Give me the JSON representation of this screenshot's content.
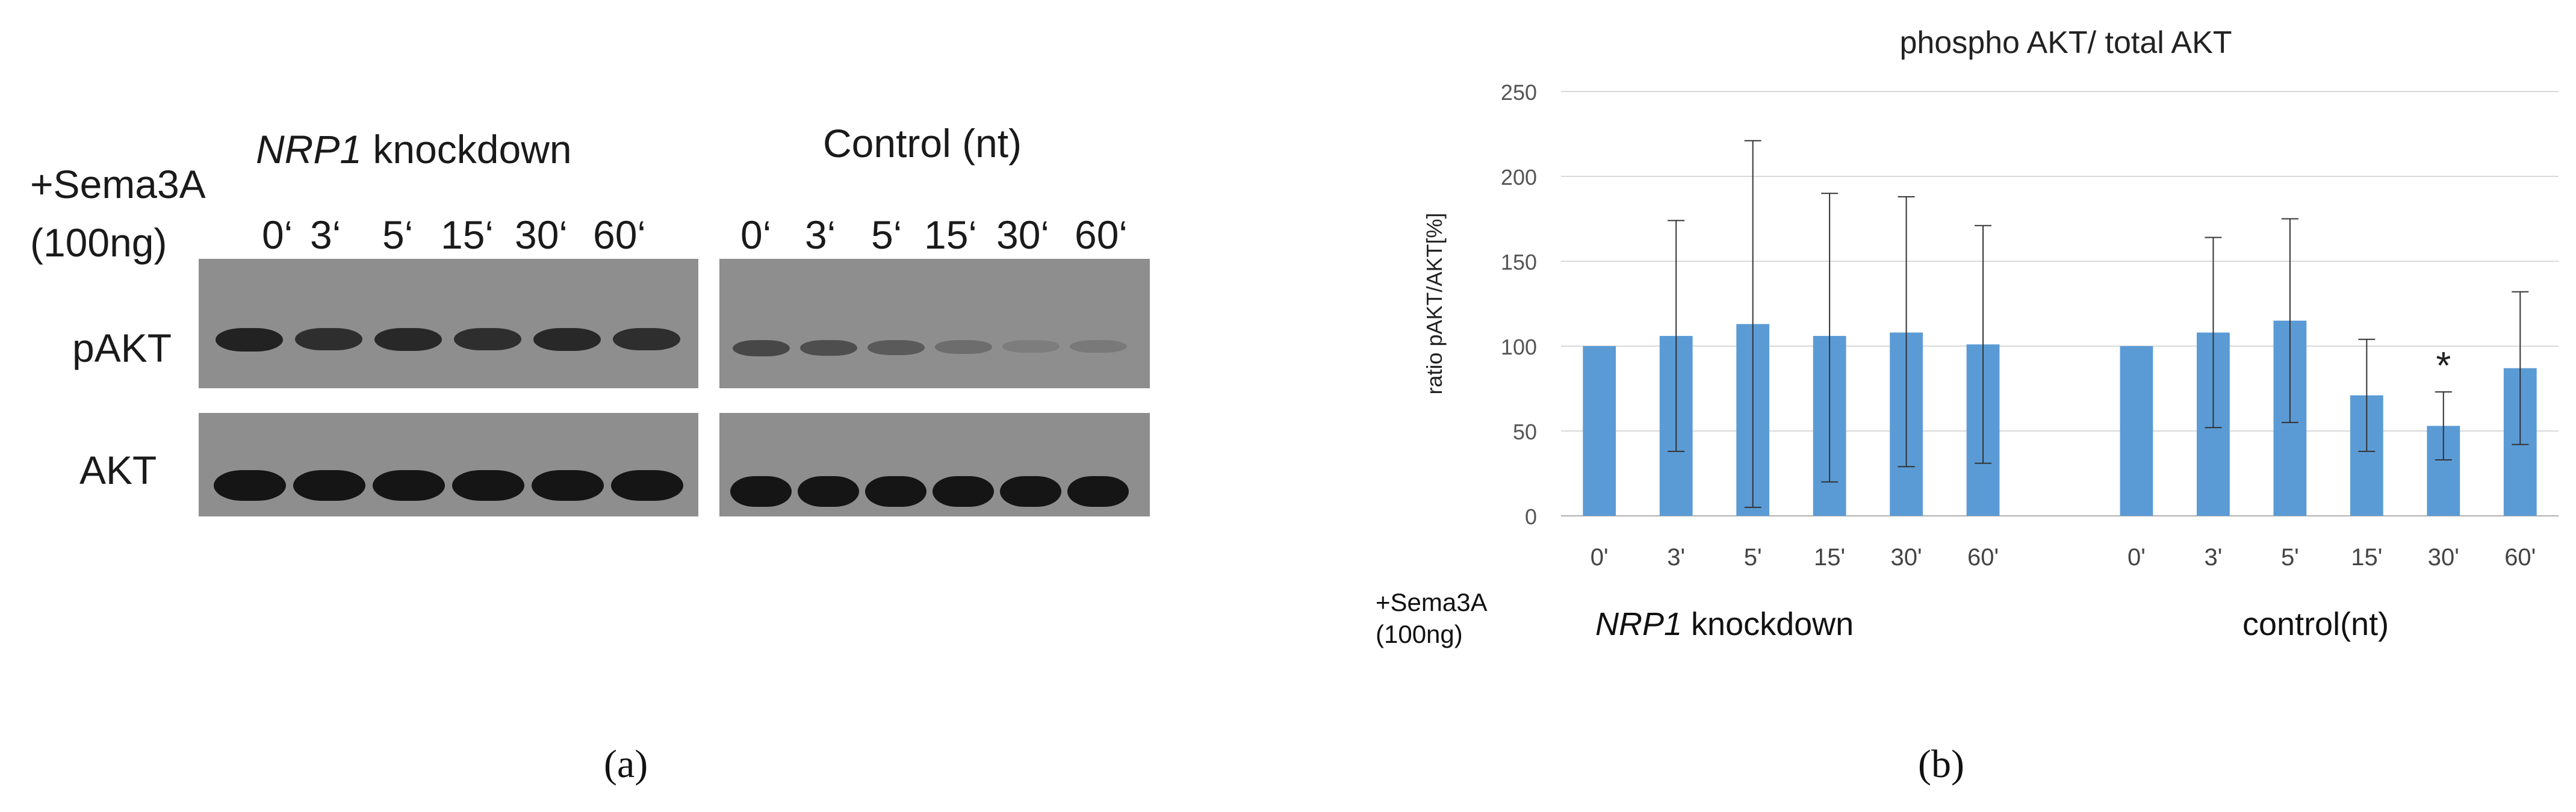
{
  "panel_a": {
    "treatment_line1": "+Sema3A",
    "treatment_line2": "(100ng)",
    "group_left_gene": "NRP1",
    "group_left_suffix": " knockdown",
    "group_right": "Control (nt)",
    "lanes_left": [
      "0‘",
      "3‘",
      "5‘",
      "15‘",
      "30‘",
      "60‘"
    ],
    "lanes_right": [
      "0‘",
      "3‘",
      "5‘",
      "15‘",
      "30‘",
      "60‘"
    ],
    "row_labels": [
      "pAKT",
      "AKT"
    ],
    "band_intensity": {
      "pakt_left": [
        0.85,
        0.75,
        0.8,
        0.75,
        0.8,
        0.75
      ],
      "pakt_right": [
        0.55,
        0.5,
        0.4,
        0.25,
        0.12,
        0.15
      ],
      "akt_left": [
        0.95,
        0.95,
        0.95,
        0.95,
        0.95,
        0.95
      ],
      "akt_right": [
        0.95,
        0.95,
        0.95,
        0.95,
        0.95,
        0.95
      ]
    },
    "caption": "(a)"
  },
  "panel_b": {
    "caption": "(b)",
    "treatment_line1": "+Sema3A",
    "treatment_line2": "(100ng)",
    "group_left_gene": "NRP1",
    "group_left_suffix": " knockdown",
    "group_right": "control(nt)"
  },
  "chart_data": {
    "type": "bar",
    "title": "phospho AKT/ total AKT",
    "ylabel": "ratio pAKT/AKT[%]",
    "xlabel": "",
    "ylim": [
      0,
      250
    ],
    "yticks": [
      "0",
      "50",
      "100",
      "150",
      "200",
      "250"
    ],
    "grid": true,
    "bar_color": "#5b9bd5",
    "categories": [
      "0'",
      "3'",
      "5'",
      "15'",
      "30'",
      "60'",
      "",
      "0'",
      "3'",
      "5'",
      "15'",
      "30'",
      "60'"
    ],
    "values": [
      100,
      106,
      113,
      106,
      108,
      101,
      null,
      100,
      108,
      115,
      71,
      53,
      87
    ],
    "error_high": [
      100,
      174,
      221,
      190,
      188,
      171,
      null,
      100,
      164,
      175,
      104,
      73,
      132
    ],
    "error_low": [
      100,
      38,
      5,
      20,
      29,
      31,
      null,
      100,
      52,
      55,
      38,
      33,
      42
    ],
    "annotations": [
      {
        "category_index": 11,
        "text": "*"
      }
    ]
  }
}
